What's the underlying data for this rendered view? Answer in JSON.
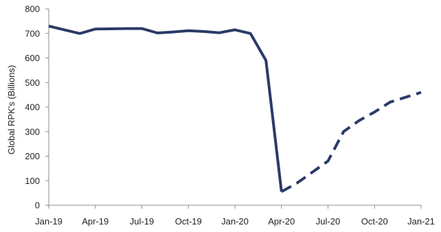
{
  "chart_data": {
    "type": "line",
    "title": "",
    "xlabel": "",
    "ylabel": "Global RPK's (Billions)",
    "ylim": [
      0,
      800
    ],
    "yticks": [
      0,
      100,
      200,
      300,
      400,
      500,
      600,
      700,
      800
    ],
    "grid": false,
    "legend": "none",
    "xticks": [
      {
        "label": "Jan-19",
        "month_index": 0
      },
      {
        "label": "Apr-19",
        "month_index": 3
      },
      {
        "label": "Jul-19",
        "month_index": 6
      },
      {
        "label": "Oct-19",
        "month_index": 9
      },
      {
        "label": "Jan-20",
        "month_index": 12
      },
      {
        "label": "Apr-20",
        "month_index": 15
      },
      {
        "label": "Jul-20",
        "month_index": 18
      },
      {
        "label": "Oct-20",
        "month_index": 21
      },
      {
        "label": "Jan-21",
        "month_index": 24
      }
    ],
    "series": [
      {
        "style": "solid",
        "color": "#2b3a67",
        "x": [
          "Jan-19",
          "Feb-19",
          "Mar-19",
          "Apr-19",
          "May-19",
          "Jun-19",
          "Jul-19",
          "Aug-19",
          "Sep-19",
          "Oct-19",
          "Nov-19",
          "Dec-19",
          "Jan-20",
          "Feb-20",
          "Mar-20",
          "Apr-20"
        ],
        "values": [
          730,
          715,
          700,
          718,
          719,
          720,
          720,
          702,
          706,
          711,
          708,
          703,
          715,
          700,
          590,
          55
        ]
      },
      {
        "style": "dashed",
        "color": "#2b3a67",
        "x": [
          "Apr-20",
          "May-20",
          "Jun-20",
          "Jul-20",
          "Aug-20",
          "Sep-20",
          "Oct-20",
          "Nov-20",
          "Dec-20",
          "Jan-21"
        ],
        "values": [
          55,
          90,
          135,
          180,
          300,
          345,
          380,
          420,
          440,
          460
        ]
      }
    ]
  }
}
